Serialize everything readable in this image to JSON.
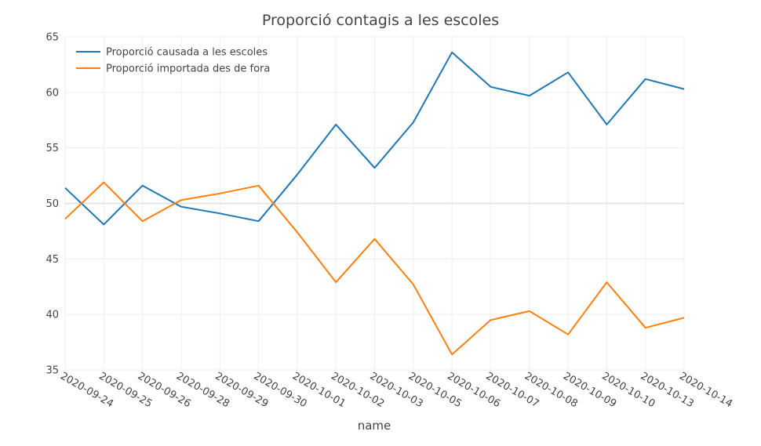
{
  "chart_data": {
    "type": "line",
    "title": "Proporció contagis a les escoles",
    "xlabel": "name",
    "ylabel": "",
    "ylim": [
      35,
      65
    ],
    "y_ticks": [
      35,
      40,
      45,
      50,
      55,
      60,
      65
    ],
    "grid": true,
    "legend_position": "top-left",
    "categories": [
      "2020-09-24",
      "2020-09-25",
      "2020-09-26",
      "2020-09-28",
      "2020-09-29",
      "2020-09-30",
      "2020-10-01",
      "2020-10-02",
      "2020-10-03",
      "2020-10-05",
      "2020-10-06",
      "2020-10-07",
      "2020-10-08",
      "2020-10-09",
      "2020-10-10",
      "2020-10-13",
      "2020-10-14"
    ],
    "series": [
      {
        "name": "Proporció causada a les escoles",
        "color": "#1f77b4",
        "values": [
          51.4,
          48.1,
          51.6,
          49.7,
          49.1,
          48.4,
          52.6,
          57.1,
          53.2,
          57.3,
          63.6,
          60.5,
          59.7,
          61.8,
          57.1,
          61.2,
          60.3
        ]
      },
      {
        "name": "Proporció importada des de fora",
        "color": "#ff7f0e",
        "values": [
          48.6,
          51.9,
          48.4,
          50.3,
          50.9,
          51.6,
          47.4,
          42.9,
          46.8,
          42.7,
          36.4,
          39.5,
          40.3,
          38.2,
          42.9,
          38.8,
          39.7
        ]
      }
    ]
  }
}
